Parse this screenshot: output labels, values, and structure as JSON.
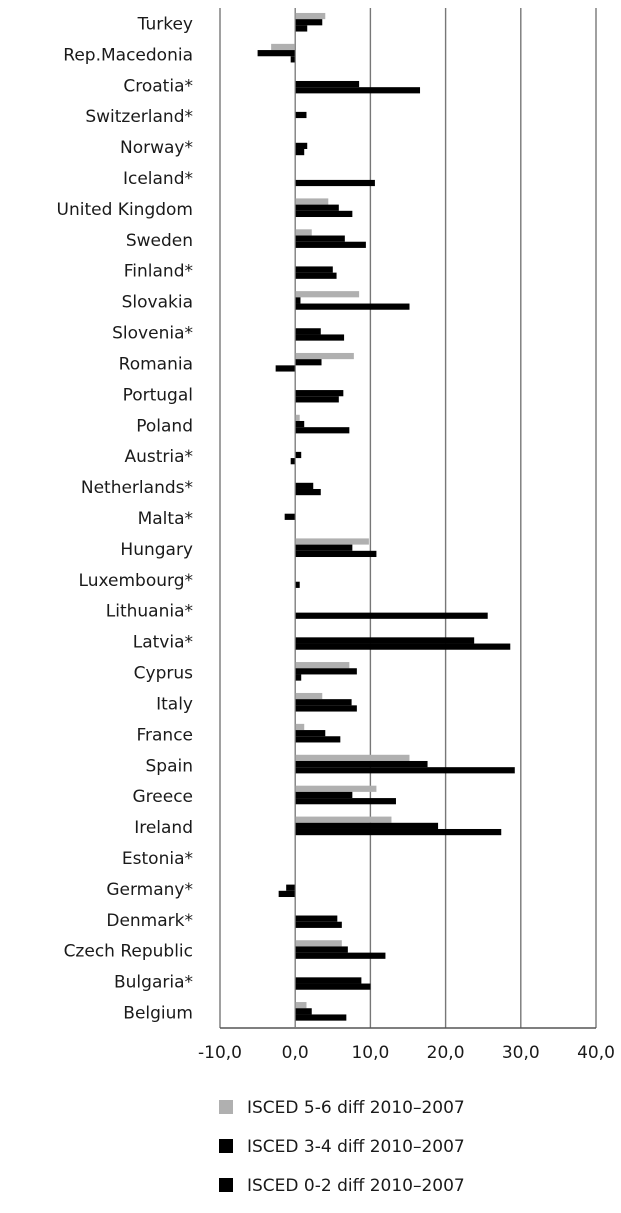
{
  "chart_data": {
    "type": "bar",
    "orientation": "horizontal",
    "categories": [
      "Turkey",
      "Rep.Macedonia",
      "Croatia*",
      "Switzerland*",
      "Norway*",
      "Iceland*",
      "United Kingdom",
      "Sweden",
      "Finland*",
      "Slovakia",
      "Slovenia*",
      "Romania",
      "Portugal",
      "Poland",
      "Austria*",
      "Netherlands*",
      "Malta*",
      "Hungary",
      "Luxembourg*",
      "Lithuania*",
      "Latvia*",
      "Cyprus",
      "Italy",
      "France",
      "Spain",
      "Greece",
      "Ireland",
      "Estonia*",
      "Germany*",
      "Denmark*",
      "Czech Republic",
      "Bulgaria*",
      "Belgium"
    ],
    "series": [
      {
        "name": "ISCED 5-6 diff 2010–2007",
        "color": "#b0b0b0",
        "values": [
          4.0,
          -3.2,
          0,
          0,
          0,
          0,
          4.4,
          2.2,
          0,
          8.5,
          0,
          7.8,
          0,
          0.6,
          0,
          0,
          0,
          9.8,
          0,
          0,
          0,
          7.2,
          3.6,
          1.2,
          15.2,
          10.8,
          12.8,
          0,
          0,
          0,
          6.2,
          0,
          1.5
        ]
      },
      {
        "name": "ISCED 3-4 diff 2010–2007",
        "color": "#000000",
        "values": [
          3.6,
          -5.0,
          8.5,
          1.5,
          1.6,
          0,
          5.8,
          6.6,
          5.0,
          0.7,
          3.4,
          3.5,
          6.4,
          1.2,
          0.8,
          2.4,
          -1.4,
          7.6,
          0,
          0,
          23.8,
          8.2,
          7.5,
          4.0,
          17.6,
          7.6,
          19.0,
          0,
          -1.2,
          5.6,
          7.0,
          8.8,
          2.2
        ]
      },
      {
        "name": "ISCED 0-2 diff 2010–2007",
        "color": "#000000",
        "values": [
          1.6,
          -0.6,
          16.6,
          0,
          1.2,
          10.6,
          7.6,
          9.4,
          5.5,
          15.2,
          6.5,
          -2.6,
          5.8,
          7.2,
          -0.6,
          3.4,
          0,
          10.8,
          0.6,
          25.6,
          28.6,
          0.8,
          8.2,
          6.0,
          29.2,
          13.4,
          27.4,
          0,
          -2.2,
          6.2,
          12.0,
          10.0,
          6.8
        ]
      }
    ],
    "xlim": [
      -10,
      40
    ],
    "xticks": [
      "-10,0",
      "0,0",
      "10,0",
      "20,0",
      "30,0",
      "40,0"
    ],
    "grid": "vertical",
    "legend_position": "bottom"
  }
}
